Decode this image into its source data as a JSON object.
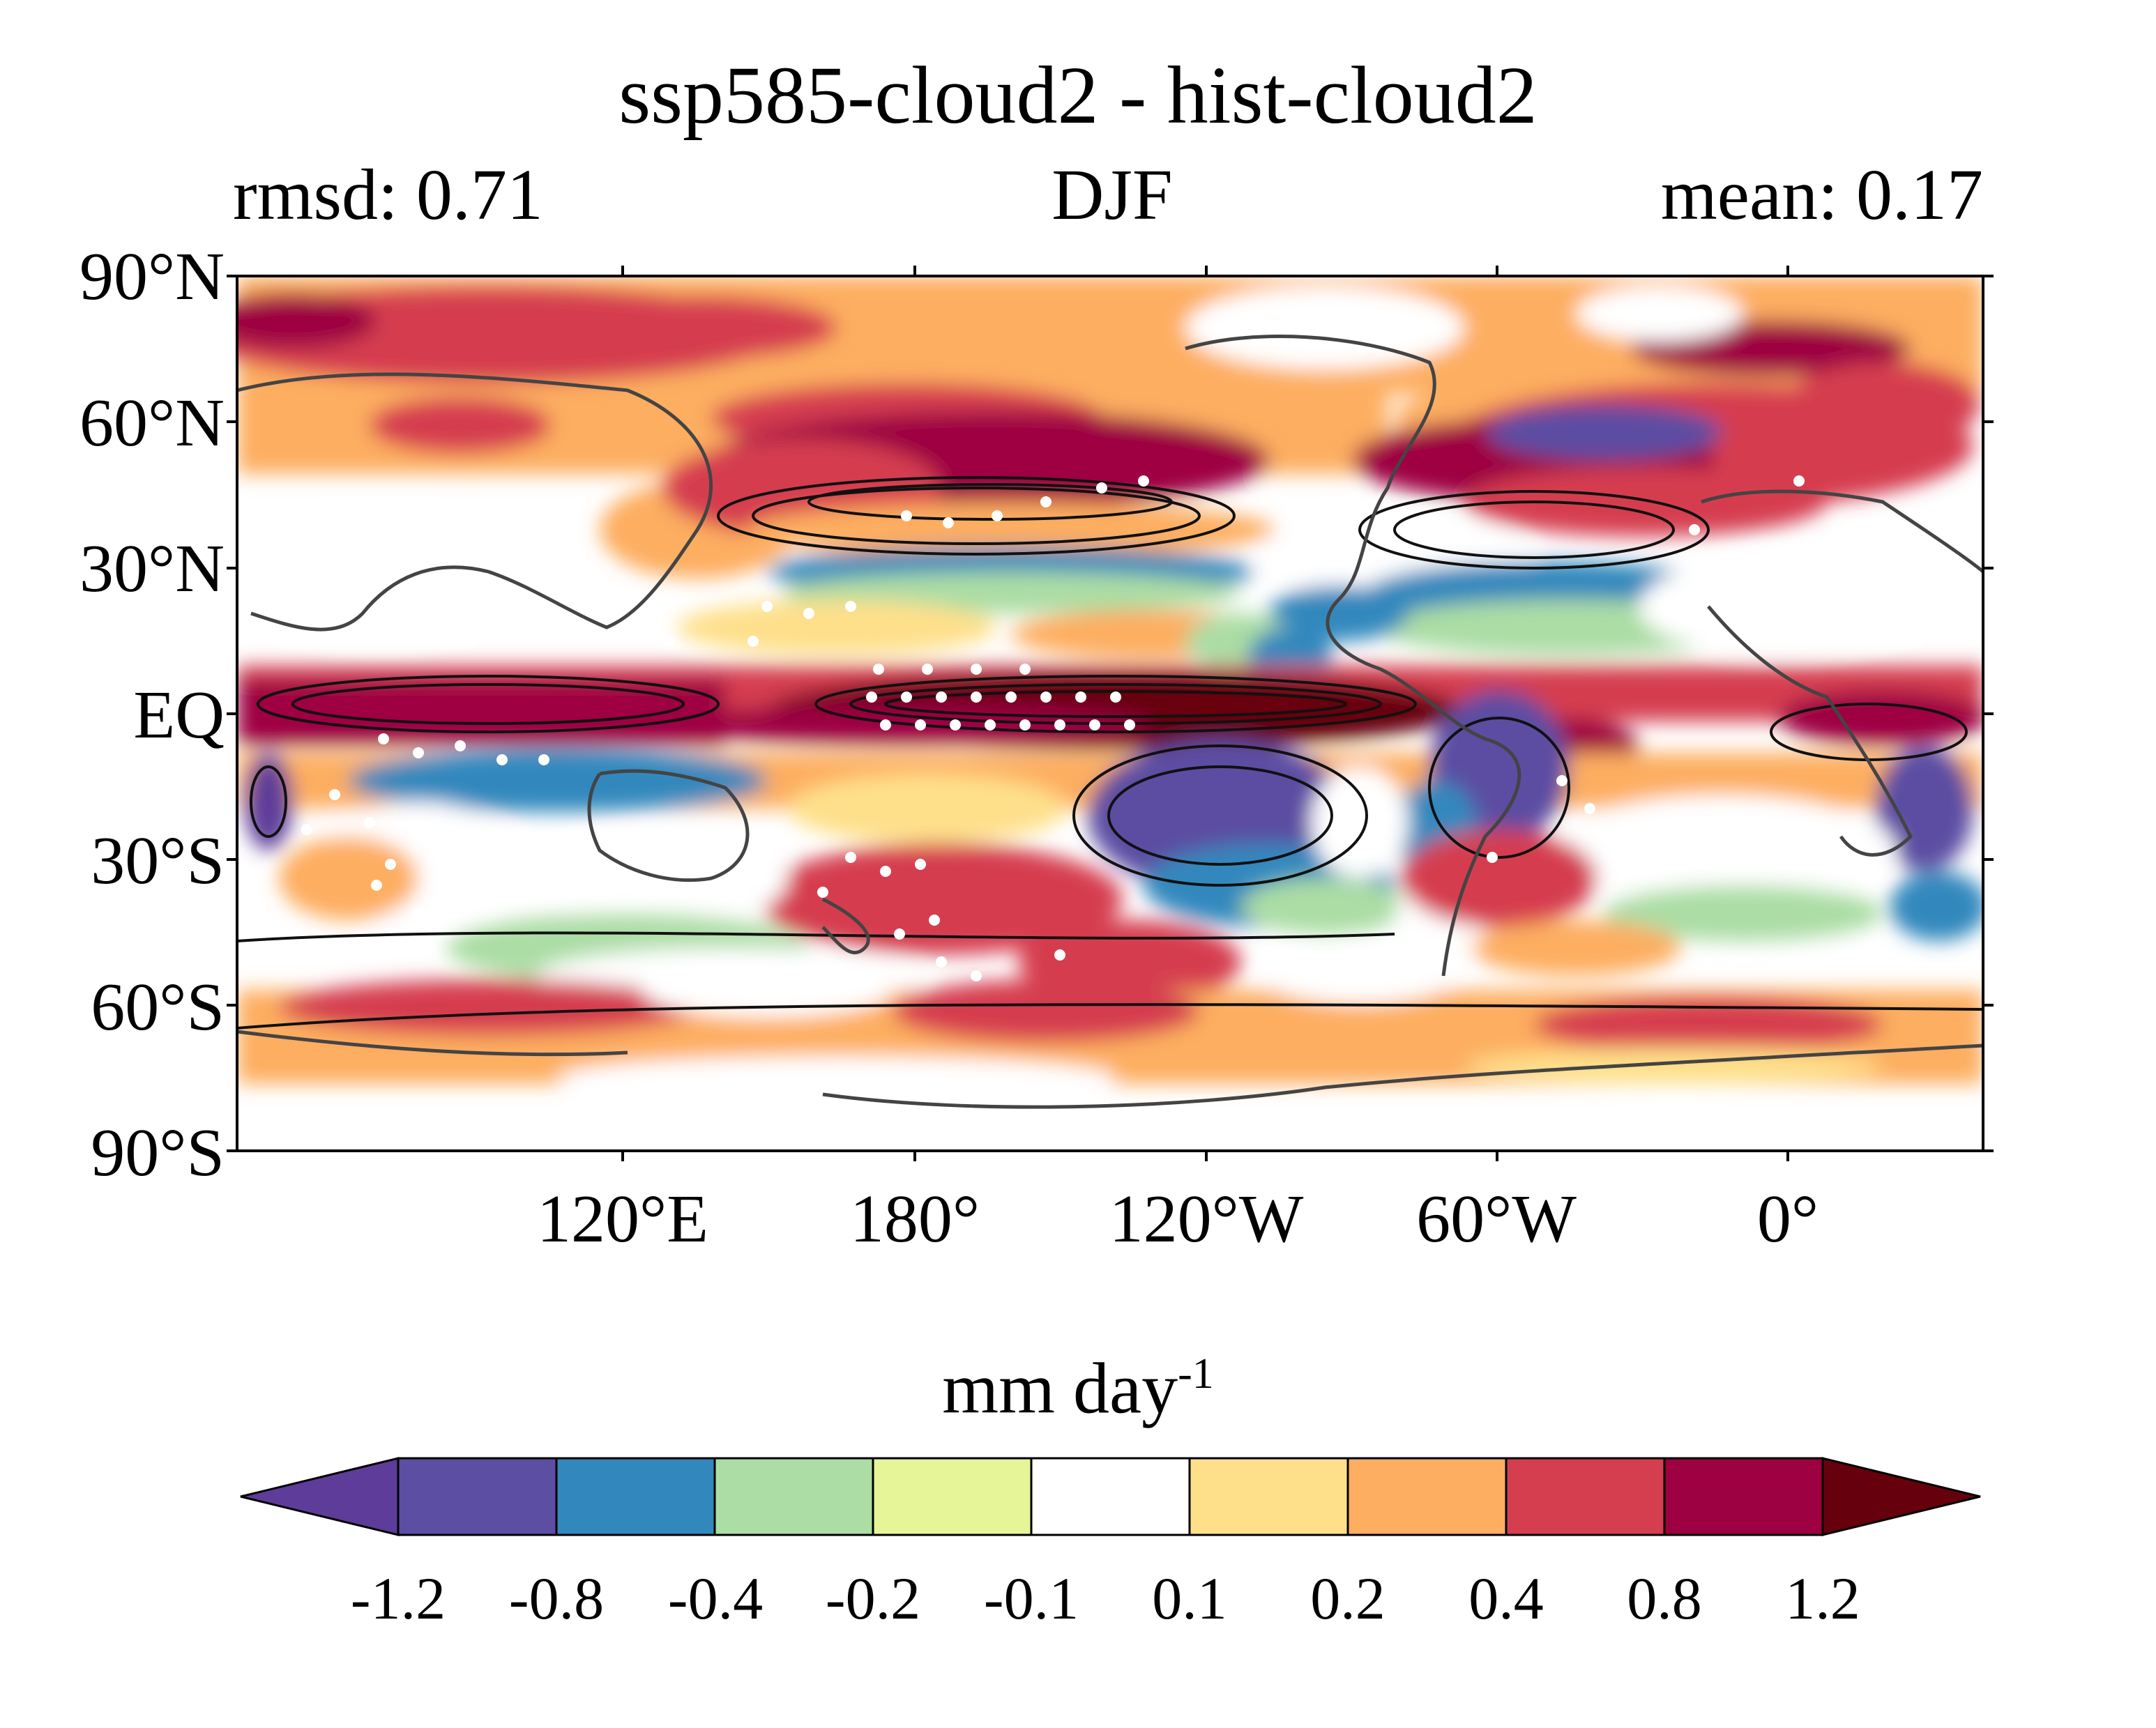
{
  "title": "ssp585-cloud2 - hist-cloud2",
  "subtitle_left": "rmsd: 0.71",
  "subtitle_center": "DJF",
  "subtitle_right": "mean: 0.17",
  "y_tick_labels": [
    "90°N",
    "60°N",
    "30°N",
    "EQ",
    "30°S",
    "60°S",
    "90°S"
  ],
  "x_tick_labels": [
    "120°E",
    "180°",
    "120°W",
    "60°W",
    "0°"
  ],
  "colorbar": {
    "unit_base": "mm day",
    "unit_exponent": "-1",
    "levels": [
      "-1.2",
      "-0.8",
      "-0.4",
      "-0.2",
      "-0.1",
      "0.1",
      "0.2",
      "0.4",
      "0.8",
      "1.2"
    ],
    "colors": [
      "#5e3c99",
      "#5b4ea3",
      "#3288bd",
      "#abdda4",
      "#e6f598",
      "#ffffff",
      "#fee08b",
      "#fdae61",
      "#d53e4f",
      "#9e0142",
      "#67000d"
    ]
  },
  "map": {
    "projection": "PlateCarree",
    "lon_range": [
      60,
      420
    ],
    "lat_range": [
      -90,
      90
    ],
    "stippling": "white dots mark significant regions",
    "contours": "black contour lines overlay the filled field"
  }
}
